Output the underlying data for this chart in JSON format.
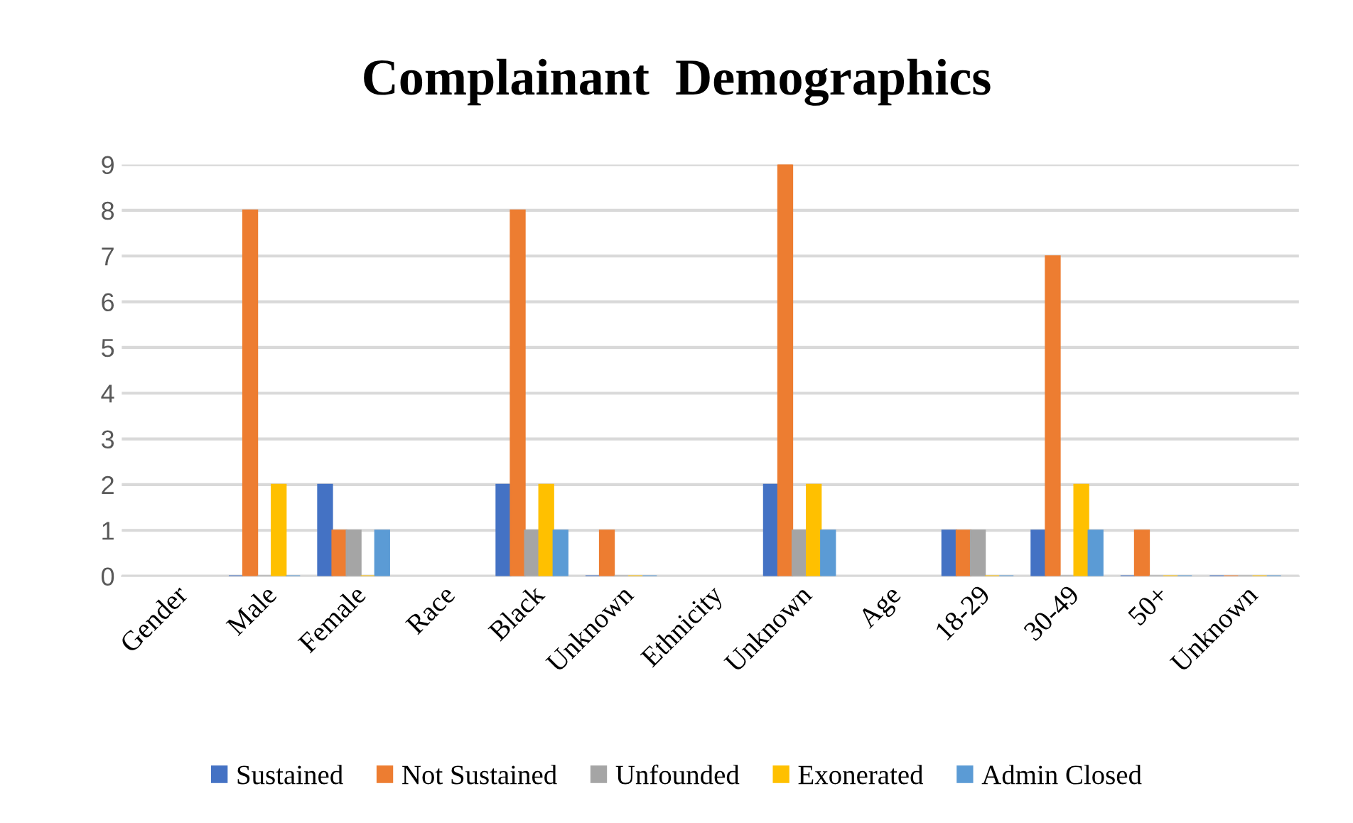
{
  "chart_data": {
    "type": "bar",
    "title": "Complainant  Demographics",
    "categories": [
      "Gender",
      "Male",
      "Female",
      "Race",
      "Black",
      "Unknown",
      "Ethnicity",
      "Unknown",
      "Age",
      "18-29",
      "30-49",
      "50+",
      "Unknown"
    ],
    "series": [
      {
        "name": "Sustained",
        "color": "#4472c4",
        "values": [
          null,
          0,
          2,
          null,
          2,
          0,
          null,
          2,
          null,
          1,
          1,
          0,
          0
        ]
      },
      {
        "name": "Not Sustained",
        "color": "#ed7d31",
        "values": [
          null,
          8,
          1,
          null,
          8,
          1,
          null,
          9,
          null,
          1,
          7,
          1,
          0
        ]
      },
      {
        "name": "Unfounded",
        "color": "#a5a5a5",
        "values": [
          null,
          0,
          1,
          null,
          1,
          0,
          null,
          1,
          null,
          1,
          0,
          0,
          0
        ]
      },
      {
        "name": "Exonerated",
        "color": "#ffc000",
        "values": [
          null,
          2,
          0,
          null,
          2,
          0,
          null,
          2,
          null,
          0,
          2,
          0,
          0
        ]
      },
      {
        "name": "Admin Closed",
        "color": "#5b9bd5",
        "values": [
          null,
          0,
          1,
          null,
          1,
          0,
          null,
          1,
          null,
          0,
          1,
          0,
          0
        ]
      }
    ],
    "ylim": [
      0,
      9
    ],
    "yticks": [
      0,
      1,
      2,
      3,
      4,
      5,
      6,
      7,
      8,
      9
    ],
    "grid": "y",
    "legend": "bottom"
  }
}
